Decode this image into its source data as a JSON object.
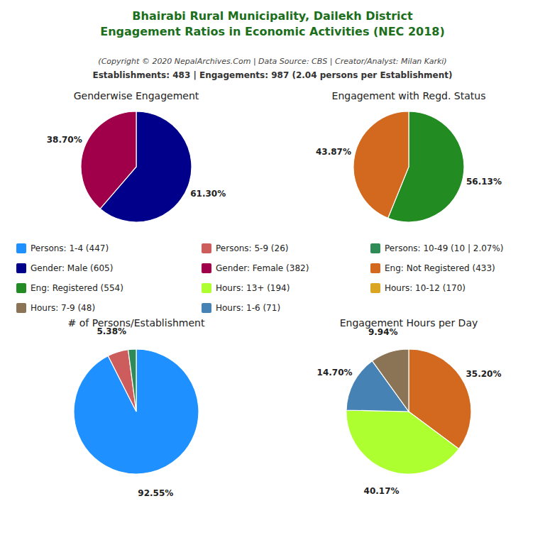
{
  "title": [
    "Bhairabi Rural Municipality, Dailekh District",
    "Engagement Ratios in Economic Activities (NEC 2018)"
  ],
  "subtitle": "(Copyright © 2020 NepalArchives.Com | Data Source: CBS | Creator/Analyst: Milan Karki)",
  "annotations": [
    "Establishments: 483 | Engagements: 987 (2.04 persons per Establishment)"
  ],
  "chart_data": [
    {
      "type": "pie",
      "title": "Genderwise Engagement",
      "values": [
        61.3,
        38.7
      ],
      "value_labels": [
        "61.30%",
        "38.70%"
      ],
      "colors": [
        "#00008B",
        "#A0004A"
      ],
      "data_labels": true
    },
    {
      "type": "pie",
      "title": "Engagement with Regd. Status",
      "values": [
        56.13,
        43.87
      ],
      "value_labels": [
        "56.13%",
        "43.87%"
      ],
      "colors": [
        "#228B22",
        "#D2691E"
      ],
      "data_labels": true
    },
    {
      "type": "pie",
      "title": "# of Persons/Establishment",
      "values": [
        92.55,
        5.38,
        2.07
      ],
      "value_labels": [
        "92.55%",
        "5.38%",
        null
      ],
      "colors": [
        "#1E90FF",
        "#CD5C5C",
        "#2E8B57"
      ],
      "data_labels": true
    },
    {
      "type": "pie",
      "title": "Engagement Hours per Day",
      "values": [
        35.2,
        40.17,
        14.7,
        9.94
      ],
      "value_labels": [
        "35.20%",
        "40.17%",
        "14.70%",
        "9.94%"
      ],
      "colors": [
        "#D2691E",
        "#ADFF2F",
        "#4682B4",
        "#8B7355"
      ],
      "data_labels": true
    },
    {
      "type": "legend",
      "series": [
        {
          "name": "Persons: 1-4 (447)",
          "color": "#1E90FF"
        },
        {
          "name": "Persons: 5-9 (26)",
          "color": "#CD5C5C"
        },
        {
          "name": "Persons: 10-49 (10 | 2.07%)",
          "color": "#2E8B57"
        },
        {
          "name": "Gender: Male (605)",
          "color": "#00008B"
        },
        {
          "name": "Gender: Female (382)",
          "color": "#A0004A"
        },
        {
          "name": "Eng: Not Registered (433)",
          "color": "#D2691E"
        },
        {
          "name": "Eng: Registered (554)",
          "color": "#228B22"
        },
        {
          "name": "Hours: 13+ (194)",
          "color": "#ADFF2F"
        },
        {
          "name": "Hours: 10-12 (170)",
          "color": "#DAA520"
        },
        {
          "name": "Hours: 7-9 (48)",
          "color": "#8B7355"
        },
        {
          "name": "Hours: 1-6 (71)",
          "color": "#4682B4"
        }
      ]
    }
  ]
}
